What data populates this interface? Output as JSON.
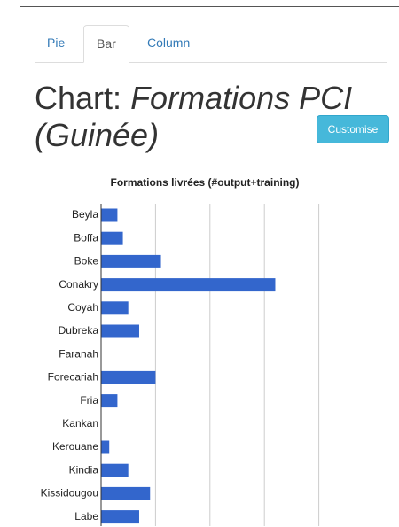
{
  "tabs": [
    "Pie",
    "Bar",
    "Column"
  ],
  "active_tab": 1,
  "heading": {
    "label": "Chart:",
    "name": "Formations PCI (Guinée)"
  },
  "button": "Customise",
  "chart_data": {
    "type": "bar",
    "orientation": "horizontal",
    "title": "Formations livrées (#output+training)",
    "categories": [
      "Beyla",
      "Boffa",
      "Boke",
      "Conakry",
      "Coyah",
      "Dubreka",
      "Faranah",
      "Forecariah",
      "Fria",
      "Kankan",
      "Kerouane",
      "Kindia",
      "Kissidougou",
      "Labe"
    ],
    "values": [
      3,
      4,
      11,
      32,
      5,
      7,
      0,
      10,
      3,
      0,
      1.5,
      5,
      9,
      7
    ],
    "color": "#3366cc",
    "xlim": [
      0,
      50
    ],
    "xticks": [
      0,
      10,
      20,
      30,
      40
    ],
    "grid": true
  }
}
